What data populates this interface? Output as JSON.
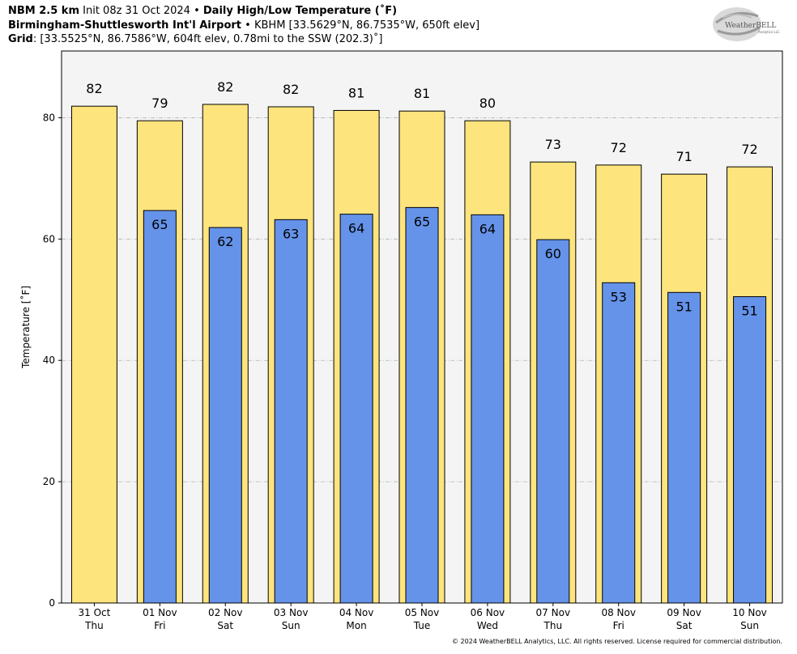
{
  "header": {
    "line1_model": "NBM 2.5 km",
    "line1_init": "Init 08z 31 Oct 2024",
    "line1_sep": "•",
    "line1_product": "Daily High/Low Temperature (˚F)",
    "line2_station": "Birmingham-Shuttlesworth Int'l Airport",
    "line2_sep": "•",
    "line2_detail": "KBHM [33.5629°N, 86.7535°W, 650ft elev]",
    "line3_label": "Grid",
    "line3_detail": ": [33.5525°N, 86.7586°W, 604ft elev, 0.78mi to the SSW (202.3)˚]"
  },
  "logo": {
    "text": "WeatherBELL",
    "subtext": "Analytics LLC"
  },
  "footer": {
    "copyright": "© 2024 WeatherBELL Analytics, LLC. All rights reserved. License required for commercial distribution."
  },
  "colors": {
    "high_fill": "#fde47d",
    "low_fill": "#6593ea",
    "plot_bg": "#f4f4f4",
    "grid": "#b3b3b3"
  },
  "chart_data": {
    "type": "bar",
    "ylabel": "Temperature [˚F]",
    "ylim": [
      0,
      91
    ],
    "yticks": [
      0,
      20,
      40,
      60,
      80
    ],
    "grid": "horizontal dashed",
    "categories": [
      {
        "date": "31 Oct",
        "day": "Thu"
      },
      {
        "date": "01 Nov",
        "day": "Fri"
      },
      {
        "date": "02 Nov",
        "day": "Sat"
      },
      {
        "date": "03 Nov",
        "day": "Sun"
      },
      {
        "date": "04 Nov",
        "day": "Mon"
      },
      {
        "date": "05 Nov",
        "day": "Tue"
      },
      {
        "date": "06 Nov",
        "day": "Wed"
      },
      {
        "date": "07 Nov",
        "day": "Thu"
      },
      {
        "date": "08 Nov",
        "day": "Fri"
      },
      {
        "date": "09 Nov",
        "day": "Sat"
      },
      {
        "date": "10 Nov",
        "day": "Sun"
      }
    ],
    "series": [
      {
        "key": "high",
        "values": [
          81.9,
          79.5,
          82.2,
          81.8,
          81.2,
          81.1,
          79.5,
          72.7,
          72.2,
          70.7,
          71.9
        ],
        "labels": [
          "82",
          "79",
          "82",
          "82",
          "81",
          "81",
          "80",
          "73",
          "72",
          "71",
          "72"
        ]
      },
      {
        "key": "low",
        "values": [
          null,
          64.7,
          61.9,
          63.2,
          64.1,
          65.2,
          64.0,
          59.9,
          52.8,
          51.2,
          50.5
        ],
        "labels": [
          "",
          "65",
          "62",
          "63",
          "64",
          "65",
          "64",
          "60",
          "53",
          "51",
          "51"
        ]
      }
    ]
  }
}
